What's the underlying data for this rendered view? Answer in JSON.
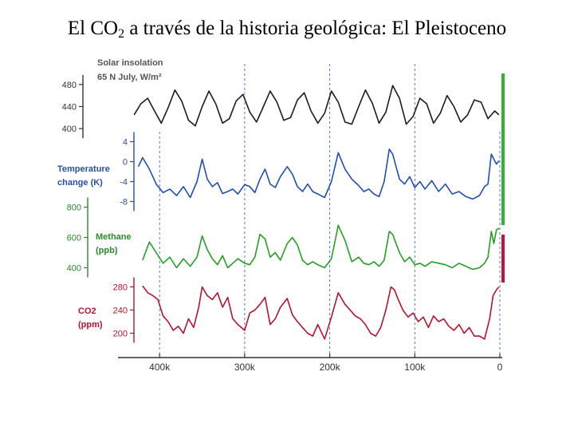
{
  "slide": {
    "title_prefix": "El CO",
    "title_sub": "2",
    "title_suffix": " a través de la historia geológica: El Pleistoceno"
  },
  "chart_data": {
    "type": "line",
    "title": "El CO2 a través de la historia geológica: El Pleistoceno",
    "xlabel": "",
    "x_ticks": [
      {
        "value": 400,
        "label": "400k"
      },
      {
        "value": 300,
        "label": "300k"
      },
      {
        "value": 200,
        "label": "200k"
      },
      {
        "value": 100,
        "label": "100k"
      },
      {
        "value": 0,
        "label": "0"
      }
    ],
    "xlim": [
      450,
      0
    ],
    "x_units": "thousand years before present",
    "series": [
      {
        "name": "insolation",
        "label_lines": [
          "Solar insolation",
          "65 N July, W/m²"
        ],
        "color": "#1c1c1c",
        "ylim": [
          380,
          500
        ],
        "ticks": [
          480,
          440,
          400
        ],
        "x": [
          430,
          422,
          414,
          406,
          398,
          390,
          382,
          374,
          366,
          358,
          350,
          342,
          334,
          326,
          318,
          310,
          302,
          294,
          286,
          278,
          270,
          262,
          254,
          246,
          238,
          230,
          222,
          214,
          206,
          198,
          190,
          182,
          174,
          166,
          158,
          150,
          142,
          134,
          126,
          118,
          110,
          102,
          94,
          86,
          78,
          70,
          62,
          54,
          46,
          38,
          30,
          22,
          14,
          6,
          1
        ],
        "values": [
          425,
          445,
          455,
          432,
          410,
          438,
          470,
          450,
          415,
          405,
          440,
          468,
          445,
          410,
          418,
          450,
          462,
          430,
          412,
          440,
          468,
          448,
          415,
          420,
          452,
          465,
          432,
          410,
          428,
          468,
          448,
          412,
          408,
          440,
          470,
          446,
          410,
          430,
          478,
          455,
          408,
          422,
          455,
          445,
          410,
          428,
          460,
          440,
          412,
          425,
          452,
          448,
          418,
          432,
          425
        ]
      },
      {
        "name": "temperature",
        "label_lines": [
          "Temperature",
          "change (K)"
        ],
        "color": "#1f4fb0",
        "ylim": [
          -10,
          6
        ],
        "ticks": [
          4,
          0,
          -4,
          -8
        ],
        "x": [
          425,
          420,
          412,
          404,
          396,
          388,
          380,
          372,
          364,
          356,
          350,
          344,
          338,
          332,
          326,
          320,
          314,
          308,
          300,
          294,
          288,
          282,
          276,
          270,
          264,
          258,
          250,
          244,
          238,
          232,
          226,
          220,
          214,
          206,
          198,
          190,
          182,
          174,
          166,
          160,
          154,
          148,
          142,
          136,
          130,
          126,
          122,
          118,
          112,
          106,
          100,
          94,
          88,
          80,
          72,
          64,
          56,
          48,
          40,
          32,
          24,
          18,
          14,
          10,
          7,
          4,
          1
        ],
        "values": [
          -1,
          0.8,
          -1.5,
          -4.5,
          -6.2,
          -5.5,
          -6.8,
          -5,
          -7.2,
          -4,
          0.5,
          -3.5,
          -5,
          -4.2,
          -6.4,
          -6,
          -5.5,
          -6.5,
          -4.6,
          -5,
          -6.2,
          -3.5,
          -1.5,
          -4.5,
          -5.2,
          -3,
          -1,
          -2.5,
          -5,
          -6,
          -4.5,
          -6,
          -6.5,
          -7.2,
          -4,
          1.8,
          -1.5,
          -3.5,
          -4.8,
          -6,
          -5.5,
          -6.5,
          -7,
          -4,
          2.5,
          1.5,
          -1,
          -3.5,
          -4.5,
          -3,
          -5.2,
          -4,
          -5.5,
          -3.8,
          -6,
          -4.5,
          -6.5,
          -6,
          -7,
          -7.5,
          -6.8,
          -5,
          -4.5,
          1.5,
          0.5,
          -0.5,
          0.2
        ]
      },
      {
        "name": "methane",
        "label_lines": [
          "Methane",
          "(ppb)"
        ],
        "color": "#23a023",
        "ylim": [
          350,
          850
        ],
        "ticks": [
          800,
          600,
          400
        ],
        "x": [
          420,
          412,
          404,
          396,
          388,
          380,
          372,
          364,
          356,
          350,
          344,
          338,
          332,
          326,
          320,
          314,
          308,
          300,
          294,
          288,
          282,
          276,
          270,
          264,
          258,
          250,
          244,
          238,
          232,
          226,
          220,
          214,
          206,
          198,
          190,
          182,
          174,
          166,
          160,
          154,
          148,
          142,
          136,
          130,
          126,
          122,
          118,
          112,
          106,
          100,
          94,
          88,
          80,
          72,
          64,
          56,
          48,
          40,
          32,
          24,
          18,
          14,
          10,
          7,
          4,
          1
        ],
        "values": [
          450,
          570,
          500,
          430,
          470,
          400,
          460,
          410,
          470,
          610,
          520,
          460,
          420,
          480,
          400,
          430,
          460,
          430,
          420,
          470,
          620,
          590,
          470,
          500,
          450,
          560,
          600,
          550,
          450,
          420,
          440,
          420,
          400,
          460,
          680,
          580,
          440,
          470,
          430,
          420,
          440,
          410,
          450,
          640,
          620,
          560,
          500,
          440,
          470,
          420,
          430,
          410,
          440,
          430,
          420,
          400,
          430,
          410,
          390,
          400,
          430,
          470,
          640,
          560,
          650,
          660
        ]
      },
      {
        "name": "co2",
        "label_lines": [
          "CO2",
          "(ppm)"
        ],
        "color": "#b8122e",
        "ylim": [
          180,
          300
        ],
        "ticks": [
          280,
          240,
          200
        ],
        "x": [
          420,
          414,
          408,
          402,
          396,
          390,
          384,
          378,
          372,
          366,
          360,
          354,
          350,
          344,
          338,
          332,
          326,
          320,
          314,
          308,
          300,
          294,
          288,
          282,
          276,
          270,
          264,
          258,
          250,
          244,
          238,
          232,
          226,
          220,
          214,
          206,
          198,
          190,
          182,
          176,
          170,
          164,
          158,
          152,
          146,
          140,
          134,
          128,
          124,
          120,
          114,
          108,
          102,
          96,
          90,
          84,
          78,
          72,
          66,
          60,
          54,
          48,
          42,
          36,
          30,
          24,
          18,
          12,
          8,
          4,
          1
        ],
        "values": [
          282,
          270,
          265,
          258,
          230,
          220,
          205,
          212,
          200,
          225,
          210,
          245,
          280,
          265,
          258,
          270,
          245,
          262,
          225,
          215,
          205,
          235,
          240,
          250,
          262,
          215,
          225,
          245,
          260,
          232,
          220,
          210,
          200,
          195,
          215,
          190,
          228,
          270,
          250,
          240,
          230,
          225,
          215,
          200,
          195,
          210,
          240,
          280,
          275,
          260,
          240,
          228,
          235,
          220,
          228,
          210,
          230,
          220,
          225,
          212,
          205,
          215,
          200,
          210,
          195,
          195,
          190,
          225,
          265,
          275,
          280
        ]
      }
    ],
    "grid": "vertical dashed at x ticks",
    "side_bars": [
      {
        "color": "#2fb52f",
        "spans_series": [
          "insolation",
          "temperature",
          "methane"
        ]
      },
      {
        "color": "#c0143c",
        "spans_series": [
          "co2"
        ]
      }
    ]
  }
}
